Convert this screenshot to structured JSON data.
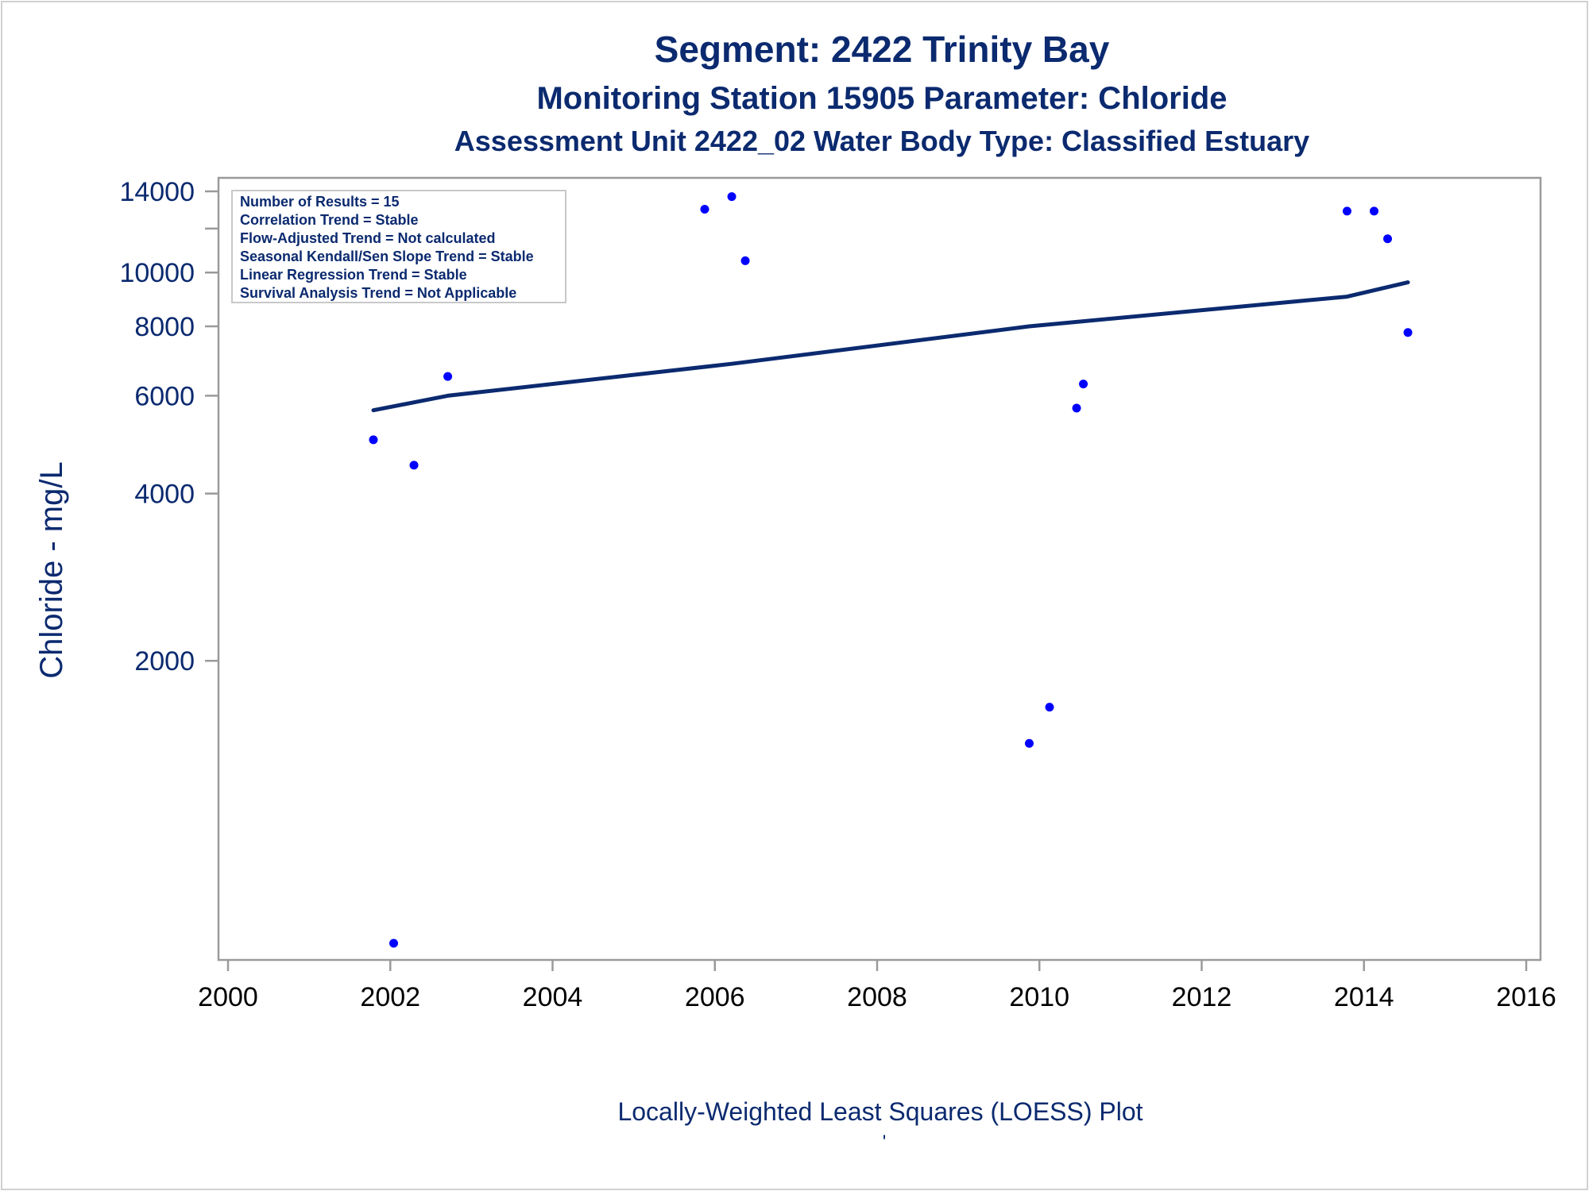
{
  "chart_data": {
    "type": "scatter",
    "title": "Segment: 2422  Trinity Bay",
    "subtitle": "Monitoring Station 15905 Parameter: Chloride",
    "subtitle2": "Assessment Unit 2422_02   Water Body Type: Classified Estuary",
    "xlabel": "Locally-Weighted Least Squares (LOESS) Plot",
    "ylabel": "Chloride - mg/L",
    "footnote": "'",
    "xlim": [
      "2000",
      "2016"
    ],
    "ylim": [
      600,
      14000
    ],
    "yscale": "log",
    "x_ticks": [
      "2000",
      "2002",
      "2004",
      "2006",
      "2008",
      "2010",
      "2012",
      "2014",
      "2016"
    ],
    "y_ticks": [
      2000,
      4000,
      6000,
      8000,
      10000,
      14000
    ],
    "y_tick_labels": [
      "2000",
      "4000",
      "6000",
      "8000",
      "10000",
      "14000"
    ],
    "y_minor_ticks": [
      12000
    ],
    "grid": false,
    "legend_position": "top-left",
    "stats_box": [
      "Number of Results = 15",
      "Correlation Trend = Stable",
      "Flow-Adjusted Trend = Not calculated",
      "Seasonal Kendall/Sen Slope Trend = Stable",
      "Linear Regression Trend = Stable",
      "Survival Analysis Trend = Not Applicable"
    ],
    "series": [
      {
        "type": "scatter",
        "color": "#0000ff",
        "points": [
          {
            "x": "2001-10",
            "y": 5000
          },
          {
            "x": "2002-01",
            "y": 620
          },
          {
            "x": "2002-04",
            "y": 4500
          },
          {
            "x": "2002-09",
            "y": 6500
          },
          {
            "x": "2005-11",
            "y": 13000
          },
          {
            "x": "2006-03",
            "y": 13700
          },
          {
            "x": "2006-05",
            "y": 10500
          },
          {
            "x": "2009-11",
            "y": 1420
          },
          {
            "x": "2010-02",
            "y": 1650
          },
          {
            "x": "2010-06",
            "y": 5700
          },
          {
            "x": "2010-07",
            "y": 6300
          },
          {
            "x": "2013-10",
            "y": 12900
          },
          {
            "x": "2014-02",
            "y": 12900
          },
          {
            "x": "2014-04",
            "y": 11500
          },
          {
            "x": "2014-07",
            "y": 7800
          }
        ]
      },
      {
        "type": "line",
        "color": "#0b2a6f",
        "points": [
          {
            "x": "2001-10",
            "y": 5650
          },
          {
            "x": "2002-09",
            "y": 6000
          },
          {
            "x": "2006-03",
            "y": 6850
          },
          {
            "x": "2009-11",
            "y": 8000
          },
          {
            "x": "2013-10",
            "y": 9050
          },
          {
            "x": "2014-07",
            "y": 9600
          }
        ]
      }
    ]
  }
}
